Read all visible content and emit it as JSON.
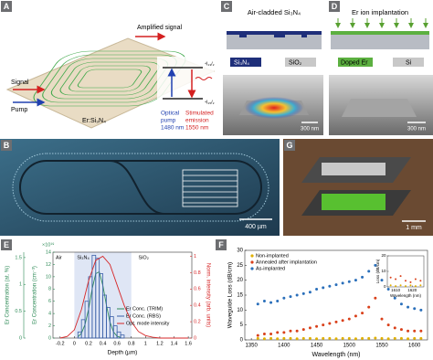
{
  "figure": {
    "panel_labels": [
      "A",
      "B",
      "C",
      "D",
      "E",
      "F",
      "G"
    ],
    "a": {
      "amplified": "Amplified signal",
      "signal": "Signal",
      "pump": "Pump",
      "material": "Er:Si₃N₄",
      "level_upper": "⁴I₁₃/₂",
      "level_lower": "⁴I₁₅/₂",
      "pump_text": [
        "Optical",
        "pump",
        "1480 nm"
      ],
      "emission_text": [
        "Stimulated",
        "emission",
        "1550 nm"
      ]
    },
    "b": {
      "scale": "400 µm"
    },
    "c": {
      "title": "Air-cladded Si₃N₄",
      "legend": [
        "Si₃N₄",
        "SiO₂"
      ],
      "scale": "300 nm"
    },
    "d": {
      "title": "Er ion implantation",
      "legend": [
        "Doped Er",
        "Si"
      ],
      "scale": "300 nm"
    },
    "g": {
      "scale": "1 mm"
    }
  },
  "chart_data": [
    {
      "type": "line",
      "xlabel": "Depth (µm)",
      "ylabel": "Er Concentration (cm⁻³)",
      "y_multiplier": "×10¹⁹",
      "y3label": "Er Concentration (at. %)",
      "y2label": "Norm. intensity (arb. units)",
      "regions": [
        "Air",
        "Si₃N₄",
        "SiO₂"
      ],
      "core_extent": [
        0,
        0.8
      ],
      "xlim": [
        -0.3,
        1.65
      ],
      "xticks": [
        -0.2,
        0,
        0.2,
        0.4,
        0.6,
        0.8,
        1,
        1.2,
        1.4,
        1.6
      ],
      "ylim": [
        0,
        14
      ],
      "yticks": [
        0,
        2,
        4,
        6,
        8,
        10,
        12,
        14
      ],
      "y3lim": [
        0,
        1.6
      ],
      "y3ticks": [
        0,
        0.5,
        1,
        1.5
      ],
      "y2lim": [
        0,
        1.05
      ],
      "y2ticks": [
        0,
        0.2,
        0.4,
        0.6,
        0.8,
        1
      ],
      "series": [
        {
          "name": "Er Conc. (TRIM)",
          "color": "#2e8b57",
          "x": [
            0.05,
            0.1,
            0.15,
            0.2,
            0.25,
            0.3,
            0.35,
            0.4,
            0.45,
            0.5,
            0.55,
            0.6,
            0.65
          ],
          "values": [
            0.2,
            0.8,
            2.2,
            4.7,
            8.0,
            10.5,
            10.8,
            8.6,
            5.4,
            2.6,
            1.0,
            0.3,
            0.1
          ]
        },
        {
          "name": "Er Conc. (RBS)",
          "color": "#3a5fa8",
          "bins": [
            0.05,
            0.1,
            0.15,
            0.2,
            0.25,
            0.3,
            0.35,
            0.4,
            0.45,
            0.5,
            0.55,
            0.6,
            0.65,
            0.7
          ],
          "values": [
            1,
            3,
            6,
            10,
            13.5,
            13,
            10.5,
            7,
            5,
            3.5,
            2,
            1,
            0.5
          ]
        },
        {
          "name": "Opt. mode intensity",
          "color": "#d62728",
          "axis": "y2",
          "x": [
            -0.2,
            -0.1,
            0,
            0.1,
            0.2,
            0.3,
            0.4,
            0.5,
            0.6,
            0.7,
            0.8,
            0.9,
            1,
            1.1,
            1.2,
            1.3,
            1.4,
            1.5,
            1.6
          ],
          "values": [
            0,
            0.02,
            0.1,
            0.35,
            0.7,
            0.95,
            1,
            0.9,
            0.65,
            0.4,
            0.2,
            0.08,
            0.03,
            0.01,
            0,
            0,
            0,
            0,
            0
          ]
        }
      ]
    },
    {
      "type": "scatter",
      "xlabel": "Wavelength (nm)",
      "ylabel": "Waveguide Loss (dB/cm)",
      "xlim": [
        1340,
        1620
      ],
      "xticks": [
        1350,
        1400,
        1450,
        1500,
        1550,
        1600
      ],
      "ylim": [
        0,
        30
      ],
      "yticks": [
        0,
        5,
        10,
        15,
        20,
        25,
        30
      ],
      "legend": "top-left",
      "x": [
        1360,
        1370,
        1380,
        1390,
        1400,
        1410,
        1420,
        1430,
        1440,
        1450,
        1460,
        1470,
        1480,
        1490,
        1500,
        1510,
        1520,
        1530,
        1540,
        1550,
        1560,
        1570,
        1580,
        1590,
        1600,
        1610
      ],
      "series": [
        {
          "name": "Non-implanted",
          "color": "#e0b000",
          "values": [
            0.5,
            0.4,
            0.5,
            0.4,
            0.5,
            0.5,
            0.4,
            0.5,
            0.5,
            0.4,
            0.5,
            0.5,
            0.4,
            0.5,
            0.5,
            0.4,
            0.5,
            0.5,
            0.6,
            0.5,
            0.4,
            0.5,
            0.5,
            0.4,
            0.5,
            0.5
          ]
        },
        {
          "name": "Annealed after implantation",
          "color": "#d9401a",
          "values": [
            1.5,
            2,
            2,
            2.5,
            2.5,
            3,
            3,
            3.5,
            4,
            4.5,
            5,
            5.5,
            6,
            6.5,
            7,
            8,
            9,
            11,
            14,
            7,
            5,
            4,
            3.5,
            3,
            3,
            3
          ]
        },
        {
          "name": "As-implanted",
          "color": "#2a6fba",
          "values": [
            12,
            13,
            12.5,
            13,
            14,
            14.5,
            15,
            15.5,
            16,
            17,
            17.5,
            18,
            18.5,
            19,
            19.5,
            20,
            21,
            23,
            25,
            20,
            17,
            14,
            12,
            11,
            10.5,
            10
          ]
        }
      ],
      "inset": {
        "xlabel": "Wavelength (nm)",
        "ylabel": "Loss (dB/cm)",
        "xlim": [
          1605,
          1627
        ],
        "xticks": [
          1610,
          1620
        ],
        "ylim": [
          0,
          20
        ],
        "yticks": [
          0,
          10,
          20
        ],
        "x": [
          1607,
          1610,
          1613,
          1616,
          1619,
          1622,
          1625
        ],
        "series": [
          {
            "color": "#d9401a",
            "values": [
              6,
              5,
              7,
              4,
              3,
              5,
              4
            ]
          },
          {
            "color": "#e0b000",
            "values": [
              1,
              0.5,
              1,
              0.5,
              1,
              0.5,
              1
            ]
          }
        ]
      }
    }
  ]
}
